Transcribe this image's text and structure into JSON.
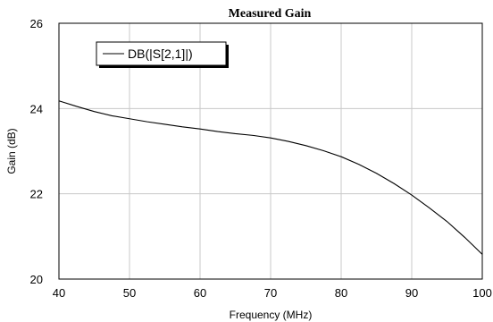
{
  "chart_data": {
    "type": "line",
    "title": "Measured Gain",
    "xlabel": "Frequency (MHz)",
    "ylabel": "Gain (dB)",
    "xlim": [
      40,
      100
    ],
    "ylim": [
      20,
      26
    ],
    "xticks": [
      40,
      50,
      60,
      70,
      80,
      90,
      100
    ],
    "yticks": [
      20,
      22,
      24,
      26
    ],
    "grid": true,
    "legend_position": "top-left",
    "series": [
      {
        "name": "DB(|S[2,1]|)",
        "color": "#000000",
        "x": [
          40,
          42.5,
          45,
          47.5,
          50,
          52.5,
          55,
          57.5,
          60,
          62.5,
          65,
          67.5,
          70,
          72.5,
          75,
          77.5,
          80,
          82.5,
          85,
          87.5,
          90,
          92.5,
          95,
          97.5,
          100
        ],
        "y": [
          24.18,
          24.05,
          23.93,
          23.83,
          23.76,
          23.69,
          23.63,
          23.57,
          23.52,
          23.46,
          23.41,
          23.37,
          23.31,
          23.23,
          23.13,
          23.01,
          22.87,
          22.69,
          22.48,
          22.24,
          21.97,
          21.67,
          21.35,
          20.98,
          20.58
        ]
      }
    ]
  }
}
